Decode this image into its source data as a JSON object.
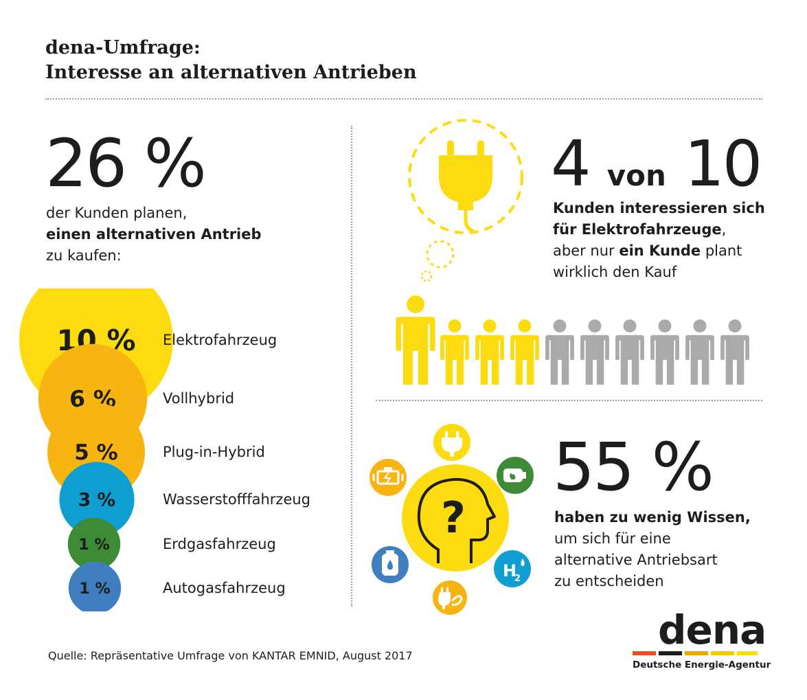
{
  "header": {
    "title_line1": "dena-Umfrage:",
    "title_line2": "Interesse an alternativen Antrieben"
  },
  "left": {
    "big_number": "26 %",
    "text_line1": "der Kunden planen,",
    "text_line2_bold": "einen alternativen Antrieb",
    "text_line3": "zu kaufen:"
  },
  "chart_data": {
    "type": "bubble",
    "unit": "%",
    "categories": [
      "Elektrofahrzeug",
      "Vollhybrid",
      "Plug-in-Hybrid",
      "Wasserstofffahrzeug",
      "Erdgasfahrzeug",
      "Autogasfahrzeug"
    ],
    "values": [
      10,
      6,
      5,
      3,
      1,
      1
    ],
    "labels": [
      "10 %",
      "6 %",
      "5 %",
      "3 %",
      "1 %",
      "1 %"
    ],
    "colors": [
      "#fcdc10",
      "#f8b512",
      "#f8b512",
      "#0f9ed0",
      "#3d8b36",
      "#3f7fbf"
    ]
  },
  "top_right": {
    "big_number_a": "4",
    "big_number_von": "von",
    "big_number_b": "10",
    "text_bold_1": "Kunden interessieren sich",
    "text_bold_2": "für Elektrofahrzeuge",
    "text_line2_end": ",",
    "text_line3_start": "aber nur ",
    "text_line3_bold": "ein Kunde",
    "text_line3_end": " plant",
    "text_line4": "wirklich den Kauf",
    "people_total": 10,
    "people_interested": 4,
    "people_planning": 1,
    "color_yellow": "#fcdc10",
    "color_gray": "#aaaaaa"
  },
  "bottom_right": {
    "big_number": "55 %",
    "text_bold": "haben zu wenig Wissen,",
    "text_line2": "um sich für eine",
    "text_line3": "alternative Antriebsart",
    "text_line4": "zu entscheiden",
    "h2_label": "H",
    "h2_sub": "2",
    "question_mark": "?",
    "icons": [
      "plug-icon",
      "engine-icon",
      "gas-tank-icon",
      "gas-cylinder-icon",
      "hydrogen-icon",
      "plug-socket-icon",
      "head-question-icon"
    ]
  },
  "footer": {
    "source": "Quelle: Repräsentative Umfrage von KANTAR EMNID, August 2017",
    "logo_word": "dena",
    "logo_sub": "Deutsche Energie-Agentur"
  }
}
